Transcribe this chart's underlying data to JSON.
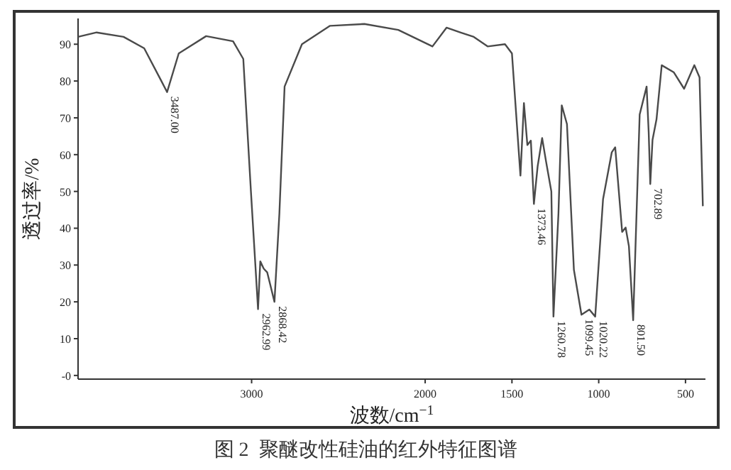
{
  "chart_data": {
    "type": "line",
    "title": "图 2  聚醚改性硅油的红外特征图谱",
    "xlabel": "波数/cm$^{−1}$",
    "ylabel": "透过率/%",
    "x": [
      4000,
      3893,
      3738,
      3619,
      3520,
      3487,
      3420,
      3262,
      3107,
      3048,
      3004,
      2962.99,
      2950,
      2930,
      2910,
      2868.42,
      2840,
      2810,
      2710,
      2548,
      2350,
      2155,
      1958,
      1877,
      1798,
      1720,
      1639,
      1540,
      1500,
      1451,
      1431,
      1411,
      1391,
      1373.46,
      1352,
      1326,
      1303,
      1273,
      1260.78,
      1232,
      1213,
      1183,
      1143,
      1099.45,
      1054,
      1020.22,
      975,
      925,
      905,
      865,
      845,
      826,
      801.5,
      764,
      724,
      712,
      702.89,
      690,
      667,
      637,
      568,
      508,
      449,
      419,
      400
    ],
    "series": [
      {
        "color": "#4a4a4a",
        "values": [
          92,
          93.2,
          92,
          88.9,
          80,
          77,
          87.5,
          92.2,
          90.8,
          86,
          50,
          18,
          31,
          29,
          28,
          20,
          44,
          78.5,
          90,
          95,
          95.5,
          93.9,
          89.4,
          94.5,
          93.2,
          92,
          89.4,
          90,
          87.5,
          54.3,
          74,
          62.6,
          63.8,
          46.6,
          56.8,
          64.5,
          58,
          50,
          16,
          44,
          73.4,
          68.3,
          28.7,
          16.5,
          17.9,
          16,
          47.9,
          60.6,
          62,
          39,
          40.2,
          35.1,
          15,
          70.9,
          78.5,
          66,
          52,
          64,
          69.6,
          84.3,
          82.4,
          77.9,
          84.3,
          81,
          46
        ]
      }
    ],
    "xlim": [
      4000,
      385
    ],
    "xticks": [
      3000,
      2000,
      1500,
      1000,
      500
    ],
    "ylim": [
      -1,
      97
    ],
    "yticks": [
      {
        "value": 0,
        "label": "-0"
      },
      10,
      20,
      30,
      40,
      50,
      60,
      70,
      80,
      90
    ],
    "annotations": [
      {
        "text": "3487.00",
        "x": 3487,
        "y": 77
      },
      {
        "text": "2962.99",
        "x": 2962.99,
        "y": 18
      },
      {
        "text": "2868.42",
        "x": 2868.42,
        "y": 20
      },
      {
        "text": "1373.46",
        "x": 1373.46,
        "y": 46.6
      },
      {
        "text": "1260.78",
        "x": 1260.78,
        "y": 16
      },
      {
        "text": "1099.45",
        "x": 1099.45,
        "y": 16.5
      },
      {
        "text": "1020.22",
        "x": 1020.22,
        "y": 16
      },
      {
        "text": "801.50",
        "x": 801.5,
        "y": 15
      },
      {
        "text": "702.89",
        "x": 702.89,
        "y": 52
      }
    ]
  }
}
